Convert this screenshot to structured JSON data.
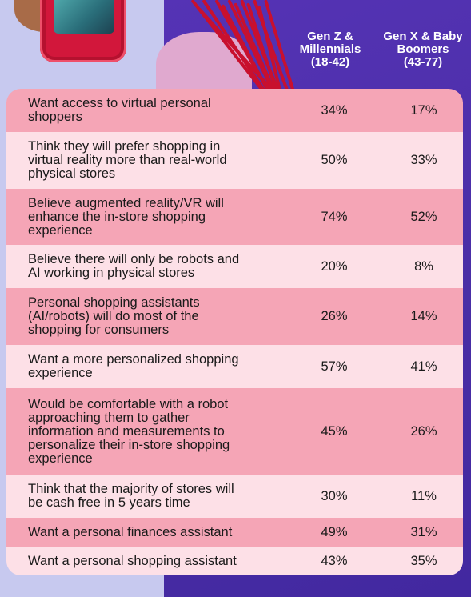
{
  "columns": {
    "gen_z": [
      "Gen Z &",
      "Millennials",
      "(18-42)"
    ],
    "gen_x": [
      "Gen X & Baby",
      "Boomers",
      "(43-77)"
    ]
  },
  "rows": [
    {
      "label": [
        "Want access to virtual personal",
        "shoppers"
      ],
      "gen_z": "34%",
      "gen_x": "17%"
    },
    {
      "label": [
        "Think they will prefer shopping in",
        "virtual reality more than real-world",
        "physical stores"
      ],
      "gen_z": "50%",
      "gen_x": "33%"
    },
    {
      "label": [
        "Believe augmented reality/VR will",
        "enhance the in-store shopping",
        "experience"
      ],
      "gen_z": "74%",
      "gen_x": "52%"
    },
    {
      "label": [
        "Believe there will only be robots and",
        "AI working in physical stores"
      ],
      "gen_z": "20%",
      "gen_x": "8%"
    },
    {
      "label": [
        "Personal shopping assistants",
        "(AI/robots) will do most of the",
        "shopping for consumers"
      ],
      "gen_z": "26%",
      "gen_x": "14%"
    },
    {
      "label": [
        "Want a more personalized shopping",
        "experience"
      ],
      "gen_z": "57%",
      "gen_x": "41%"
    },
    {
      "label": [
        "Would be comfortable with a robot",
        "approaching them to gather",
        "information and measurements to",
        "personalize their in-store shopping",
        "experience"
      ],
      "gen_z": "45%",
      "gen_x": "26%"
    },
    {
      "label": [
        "Think that the majority of stores will",
        "be cash free in 5 years time"
      ],
      "gen_z": "30%",
      "gen_x": "11%"
    },
    {
      "label": [
        "Want a personal finances assistant"
      ],
      "gen_z": "49%",
      "gen_x": "31%"
    },
    {
      "label": [
        "Want a personal shopping assistant"
      ],
      "gen_z": "43%",
      "gen_x": "35%"
    }
  ],
  "colors": {
    "row_dark": "#f5a5b6",
    "row_light": "#fde0e7",
    "panel_violet": "#4b2fa8",
    "panel_lilac": "#c7c9ef"
  }
}
